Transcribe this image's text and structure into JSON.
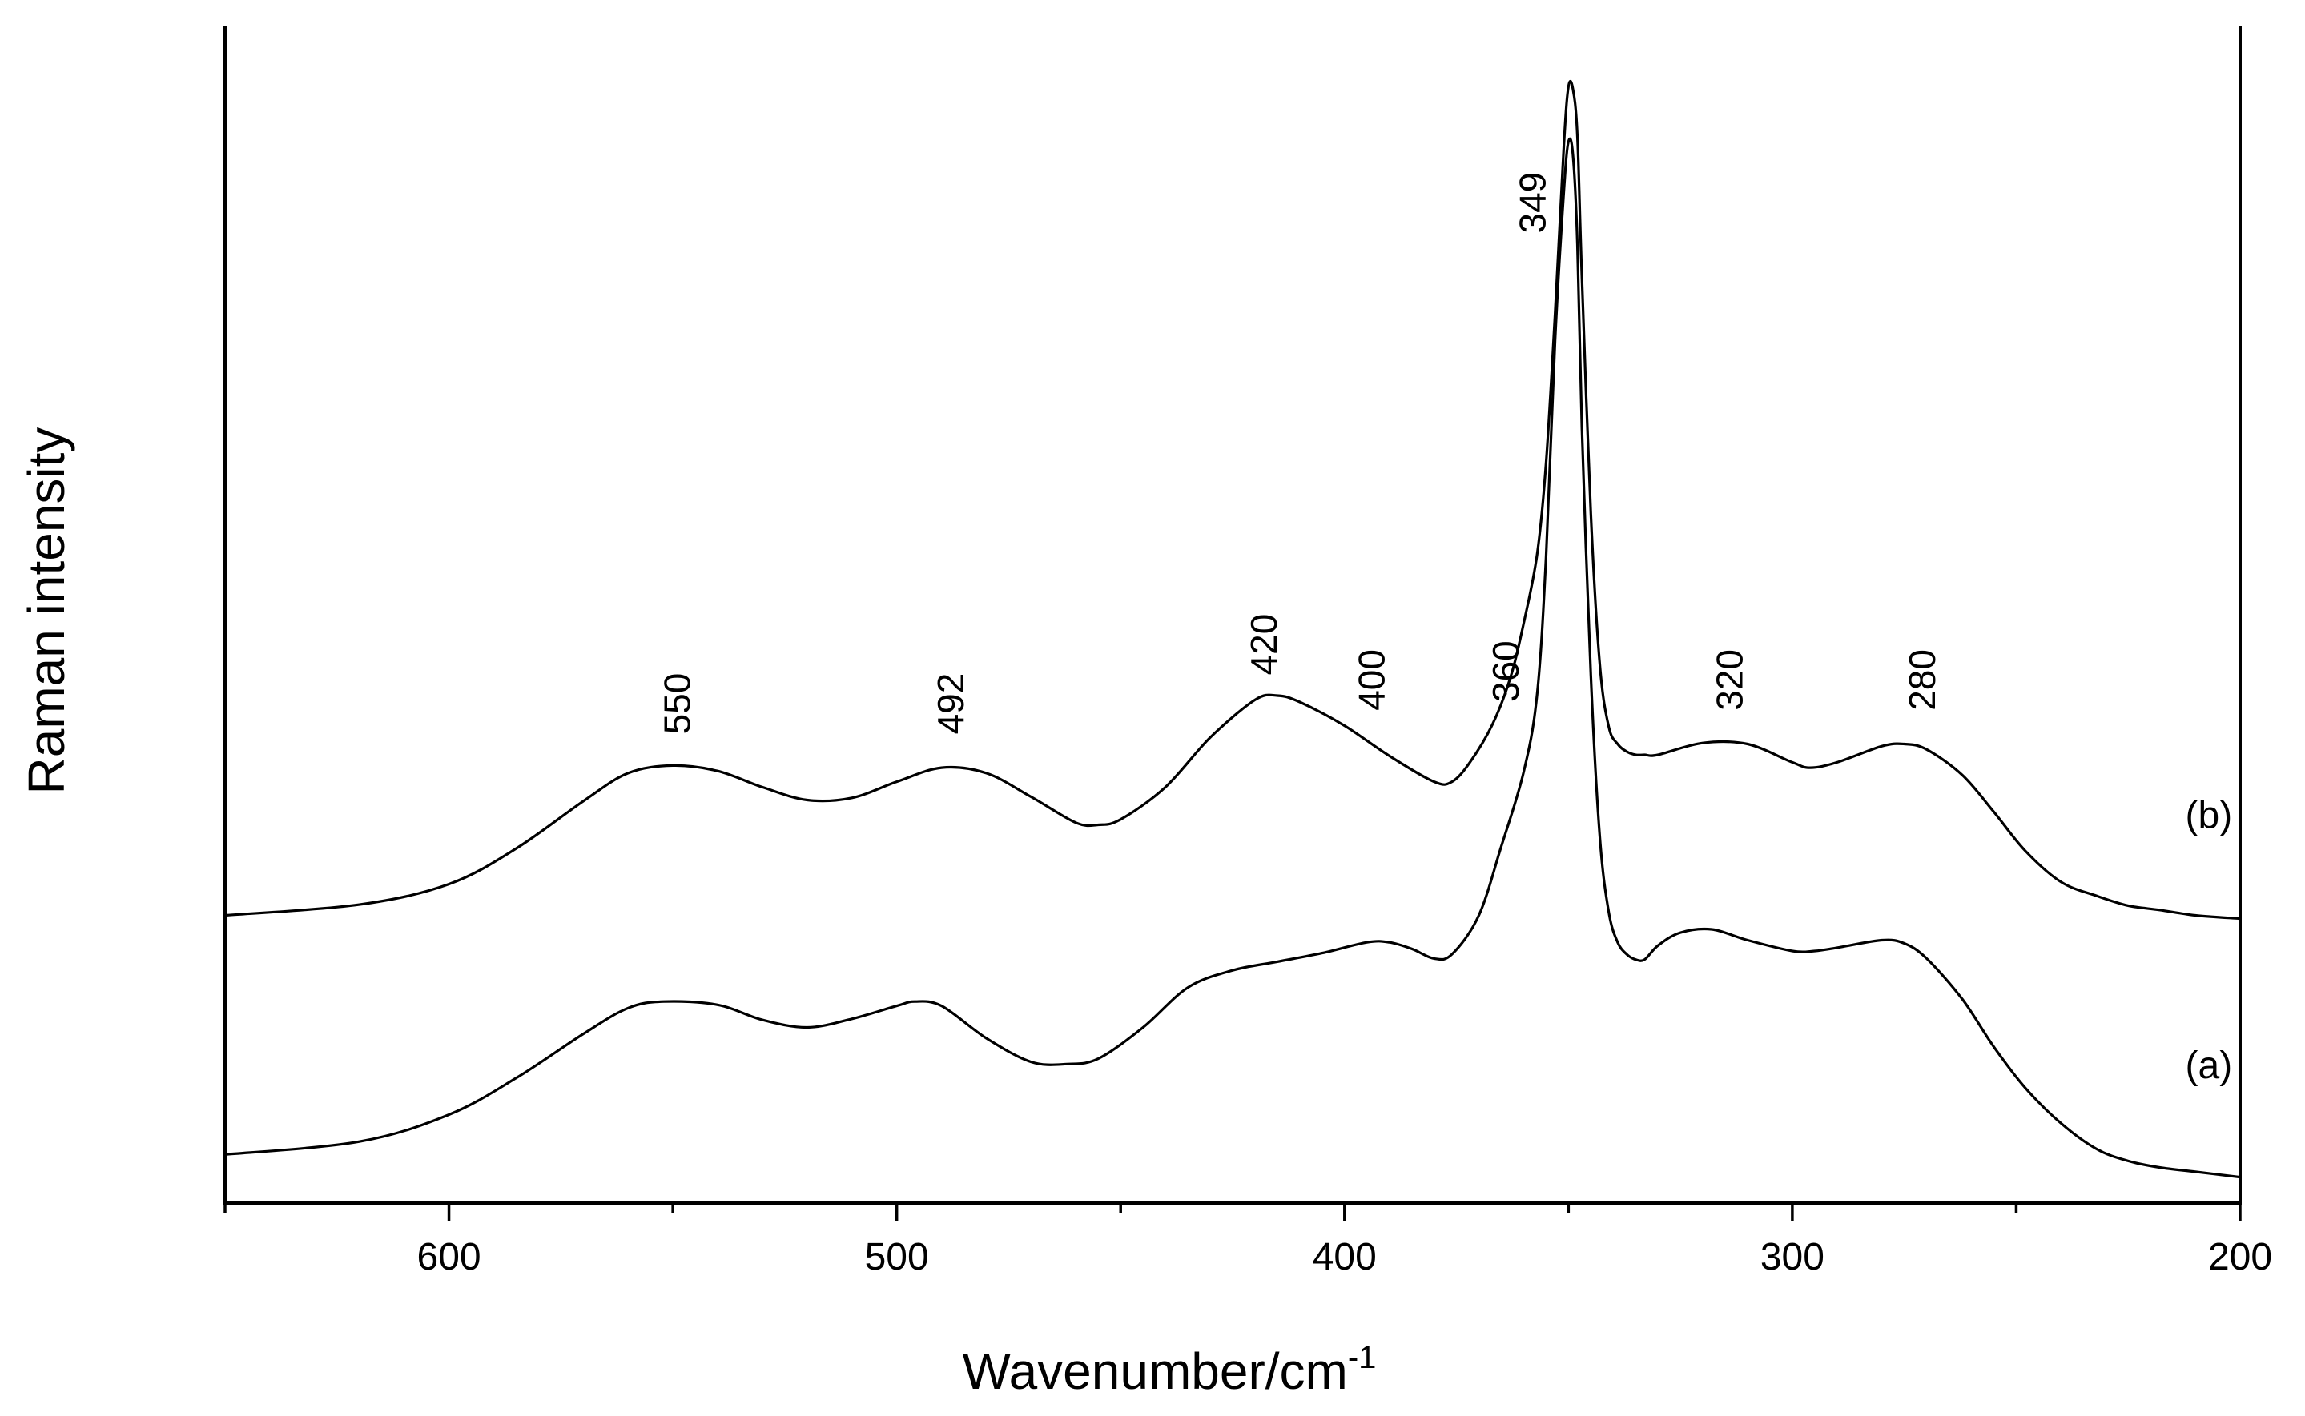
{
  "chart_data": {
    "type": "line",
    "title": "",
    "xlabel": "Wavenumber/cm",
    "xlabel_superscript": "-1",
    "ylabel": "Raman intensity",
    "xlim": [
      650,
      200
    ],
    "ylim": [
      0,
      100
    ],
    "x_ticks": [
      600,
      500,
      400,
      300,
      200
    ],
    "x_tick_labels": [
      "600",
      "500",
      "400",
      "300",
      "200"
    ],
    "x_minor_ticks": [
      650,
      550,
      450,
      350,
      250
    ],
    "y_ticks_shown": false,
    "grid": false,
    "series": [
      {
        "name": "(a)",
        "x": [
          650,
          620,
          600,
          585,
          570,
          560,
          552,
          540,
          530,
          520,
          510,
          500,
          496,
          490,
          480,
          470,
          462,
          455,
          445,
          435,
          425,
          415,
          405,
          395,
          390,
          385,
          380,
          376,
          370,
          365,
          360,
          357,
          355,
          353,
          351,
          350,
          349,
          348,
          347,
          345,
          343,
          341,
          339,
          337,
          335,
          333,
          330,
          325,
          318,
          310,
          300,
          295,
          290,
          280,
          275,
          270,
          262,
          255,
          248,
          240,
          232,
          225,
          218,
          210,
          200
        ],
        "values": [
          2.5,
          3.7,
          6.2,
          9.6,
          13.7,
          16.1,
          16.7,
          16.4,
          15,
          14.3,
          15.1,
          16.3,
          16.7,
          16.3,
          13.3,
          11.1,
          10.9,
          11.4,
          14.3,
          18,
          19.6,
          20.4,
          21.2,
          22.2,
          22.2,
          21.6,
          20.7,
          21.1,
          24.7,
          31.1,
          38,
          45.2,
          58,
          78,
          92,
          96.5,
          95.3,
          87,
          70,
          47,
          32,
          25,
          22.2,
          21.1,
          20.6,
          20.6,
          21.9,
          23.1,
          23.4,
          22.4,
          21.4,
          21.4,
          21.7,
          22.4,
          22.1,
          20.7,
          16.9,
          12.5,
          8.7,
          5.4,
          3,
          1.9,
          1.3,
          0.9,
          0.4
        ]
      },
      {
        "name": "(b)",
        "x": [
          650,
          620,
          600,
          585,
          570,
          560,
          550,
          540,
          530,
          520,
          510,
          500,
          490,
          480,
          470,
          460,
          455,
          450,
          440,
          430,
          420,
          415,
          410,
          400,
          390,
          380,
          376,
          372,
          367,
          363,
          360,
          357,
          355,
          353,
          351,
          350,
          349,
          348,
          347,
          345,
          343,
          341,
          339,
          337,
          335,
          333,
          330,
          320,
          310,
          300,
          296,
          290,
          280,
          275,
          270,
          262,
          255,
          248,
          240,
          232,
          225,
          218,
          210,
          200
        ],
        "values": [
          24.7,
          25.7,
          27.6,
          30.9,
          35.3,
          37.9,
          38.6,
          38.1,
          36.6,
          35.4,
          35.6,
          37.1,
          38.4,
          37.9,
          35.7,
          33.3,
          33.1,
          33.6,
          36.6,
          41.2,
          44.7,
          45.1,
          44.5,
          42.3,
          39.5,
          37.1,
          37.1,
          38.9,
          42.4,
          46.7,
          51.8,
          58.2,
          66.7,
          80.5,
          96.3,
          101.6,
          101.4,
          97,
          84,
          62,
          48,
          42.2,
          40.6,
          39.9,
          39.6,
          39.6,
          39.6,
          40.7,
          40.6,
          38.9,
          38.4,
          38.9,
          40.4,
          40.6,
          40.1,
          37.7,
          34.3,
          30.7,
          27.8,
          26.5,
          25.6,
          25.2,
          24.7,
          24.4
        ]
      }
    ],
    "series_labels": [
      {
        "series": "(a)",
        "text": "(a)",
        "x": 207,
        "y": 9.6
      },
      {
        "series": "(b)",
        "text": "(b)",
        "x": 207,
        "y": 32.8
      }
    ],
    "annotations": [
      {
        "text": "550",
        "x": 549,
        "y": 41.5
      },
      {
        "text": "492",
        "x": 488,
        "y": 41.5
      },
      {
        "text": "420",
        "x": 418,
        "y": 47
      },
      {
        "text": "400",
        "x": 394,
        "y": 43.7
      },
      {
        "text": "360",
        "x": 364,
        "y": 44.5
      },
      {
        "text": "349",
        "x": 358,
        "y": 88
      },
      {
        "text": "320",
        "x": 314,
        "y": 43.7
      },
      {
        "text": "280",
        "x": 271,
        "y": 43.7
      }
    ]
  }
}
